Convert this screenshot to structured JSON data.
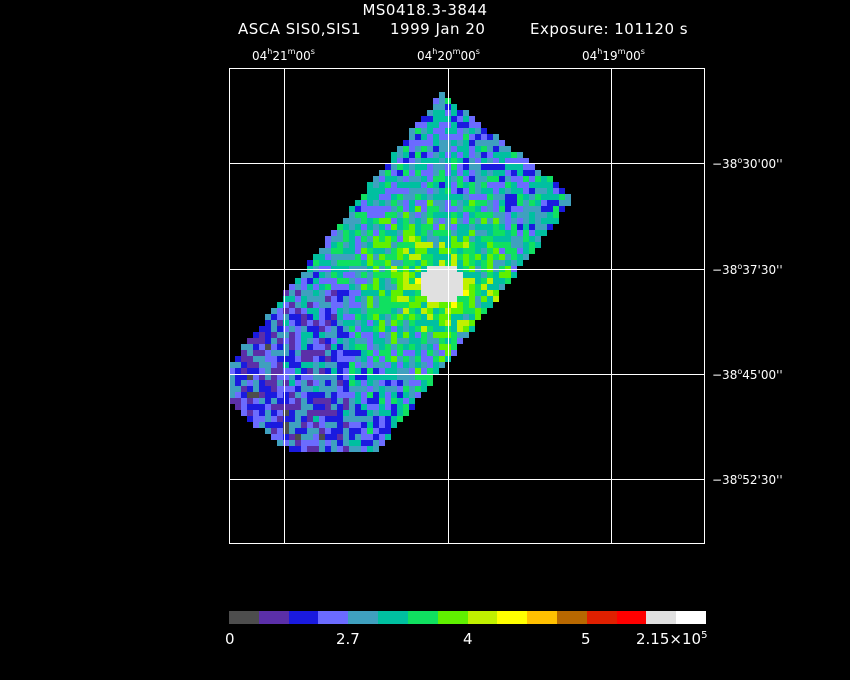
{
  "header": {
    "title": "MS0418.3-3844",
    "instrument": "ASCA SIS0,SIS1",
    "date": "1999 Jan 20",
    "exposure": "Exposure: 101120 s"
  },
  "axes": {
    "ra_ticks": [
      {
        "h": "04",
        "m": "21",
        "s": "00"
      },
      {
        "h": "04",
        "m": "20",
        "s": "00"
      },
      {
        "h": "04",
        "m": "19",
        "s": "00"
      }
    ],
    "dec_ticks": [
      {
        "d": "−38",
        "m": "30",
        "s": "00"
      },
      {
        "d": "−38",
        "m": "37",
        "s": "30"
      },
      {
        "d": "−38",
        "m": "45",
        "s": "00"
      },
      {
        "d": "−38",
        "m": "52",
        "s": "30"
      }
    ]
  },
  "colorbar": {
    "colors": [
      "#4d4d4d",
      "#5b2fa8",
      "#1a1adf",
      "#6b6bff",
      "#3fa0bf",
      "#00c0a0",
      "#10e060",
      "#60f000",
      "#c0f000",
      "#ffff00",
      "#ffc000",
      "#b86800",
      "#e02000",
      "#ff0000",
      "#e0e0e0",
      "#ffffff"
    ],
    "labels": [
      "0",
      "2.7",
      "4",
      "5"
    ],
    "max_label": "2.15×10",
    "max_exp": "5"
  }
}
